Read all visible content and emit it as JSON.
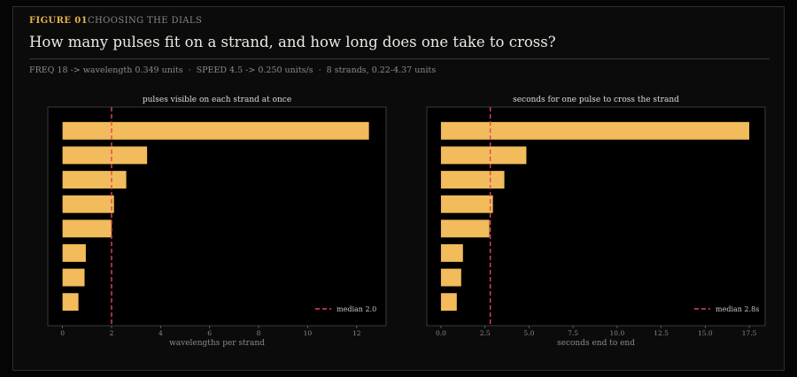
{
  "header": {
    "figure_label": "FIGURE 01",
    "section_label": "CHOOSING THE DIALS",
    "title": "How many pulses fit on a strand, and how long does one take to cross?",
    "subtitle_parts": [
      "FREQ 18 -> wavelength 0.349 units",
      "SPEED 4.5 -> 0.250 units/s",
      "8 strands, 0.22-4.37 units"
    ],
    "separator": "·"
  },
  "colors": {
    "bar": "#f2bb5b",
    "median_line": "#e0465a",
    "accent": "#e8b24c",
    "plot_bg": "#000000",
    "panel_border": "#3a3a3a"
  },
  "chart_data": [
    {
      "type": "bar",
      "orientation": "horizontal",
      "title": "pulses visible on each strand at once",
      "xlabel": "wavelengths per strand",
      "ylabel": "",
      "xlim": [
        -0.6,
        13.2
      ],
      "xticks": [
        0,
        2,
        4,
        6,
        8,
        10,
        12
      ],
      "xtick_labels": [
        "0",
        "2",
        "4",
        "6",
        "8",
        "10",
        "12"
      ],
      "values": [
        12.5,
        3.45,
        2.6,
        2.1,
        2.0,
        0.95,
        0.9,
        0.65
      ],
      "median": {
        "value": 2.0,
        "label": "median 2.0"
      },
      "legend_position": "bottom-right",
      "grid": false
    },
    {
      "type": "bar",
      "orientation": "horizontal",
      "title": "seconds for one pulse to cross the strand",
      "xlabel": "seconds end to end",
      "ylabel": "",
      "xlim": [
        -0.8,
        18.4
      ],
      "xticks": [
        0,
        2.5,
        5,
        7.5,
        10,
        12.5,
        15,
        17.5
      ],
      "xtick_labels": [
        "0.0",
        "2.5",
        "5.0",
        "7.5",
        "10.0",
        "12.5",
        "15.0",
        "17.5"
      ],
      "values": [
        17.5,
        4.85,
        3.6,
        2.95,
        2.75,
        1.25,
        1.15,
        0.9
      ],
      "median": {
        "value": 2.8,
        "label": "median 2.8s"
      },
      "legend_position": "bottom-right",
      "grid": false
    }
  ]
}
